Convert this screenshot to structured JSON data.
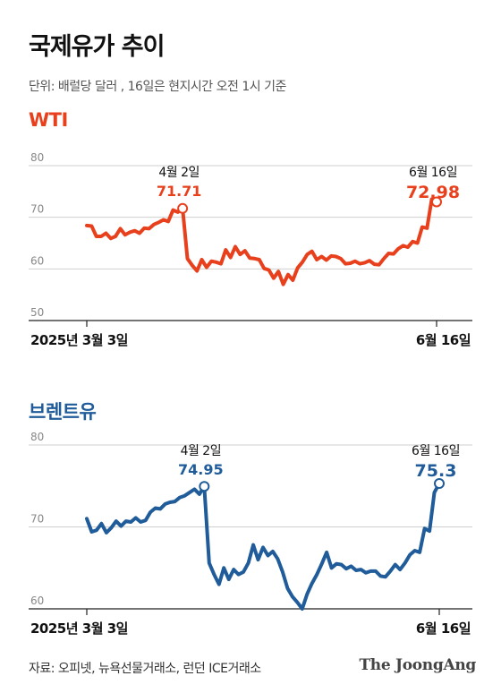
{
  "title": "국제유가 추이",
  "subtitle": "단위: 배럴당 달러 , 16일은 현지시간 오전 1시 기준",
  "source": "자료: 오피넷, 뉴욕선물거래소, 런던 ICE거래소",
  "logo": "The JoongAng",
  "chart_data": [
    {
      "type": "line",
      "title": "WTI",
      "color": "#e8401c",
      "ylim": [
        50,
        80
      ],
      "yticks": [
        "80",
        "70",
        "60",
        "50"
      ],
      "x_start_label": "2025년 3월 3일",
      "x_end_label": "6월 16일",
      "grid": true,
      "values": [
        68.4,
        68.3,
        66.3,
        66.3,
        66.9,
        65.9,
        66.3,
        67.8,
        66.6,
        67.1,
        67.4,
        66.9,
        67.9,
        67.8,
        68.6,
        69.0,
        69.5,
        69.2,
        71.4,
        71.0,
        71.71,
        62.0,
        60.7,
        59.6,
        61.8,
        60.3,
        61.5,
        61.3,
        61.0,
        63.7,
        62.2,
        64.3,
        62.8,
        63.5,
        62.1,
        62.0,
        61.8,
        60.1,
        59.8,
        58.2,
        59.5,
        57.0,
        58.9,
        57.8,
        60.2,
        61.3,
        62.8,
        63.4,
        61.8,
        62.4,
        61.7,
        62.5,
        62.4,
        62.0,
        61.0,
        61.1,
        61.5,
        61.0,
        61.2,
        61.6,
        60.9,
        60.8,
        62.0,
        63.0,
        62.9,
        63.9,
        64.5,
        64.2,
        65.3,
        65.0,
        68.1,
        67.9,
        73.5,
        72.98
      ],
      "annotations": [
        {
          "index": 20,
          "date": "4월 2일",
          "value": "71.71"
        },
        {
          "index": 73,
          "date": "6월 16일",
          "value": "72.98"
        }
      ]
    },
    {
      "type": "line",
      "title": "브렌트유",
      "color": "#1f5c99",
      "ylim": [
        60,
        80
      ],
      "yticks": [
        "80",
        "70",
        "60"
      ],
      "x_start_label": "2025년 3월 3일",
      "x_end_label": "6월 16일",
      "grid": true,
      "values": [
        71.0,
        69.4,
        69.6,
        70.4,
        69.3,
        69.9,
        70.7,
        70.1,
        70.7,
        70.6,
        71.1,
        70.6,
        70.8,
        71.8,
        72.3,
        72.2,
        72.8,
        73.0,
        73.1,
        73.6,
        73.8,
        74.2,
        74.6,
        74.0,
        74.95,
        65.6,
        64.2,
        63.0,
        65.0,
        63.6,
        64.8,
        64.2,
        64.5,
        65.6,
        67.8,
        66.0,
        67.5,
        66.5,
        67.0,
        66.1,
        64.5,
        62.5,
        61.5,
        60.8,
        60.0,
        61.8,
        63.1,
        64.2,
        65.5,
        66.9,
        65.0,
        65.5,
        65.4,
        64.9,
        65.2,
        64.7,
        64.8,
        64.4,
        64.6,
        64.6,
        64.0,
        63.9,
        64.6,
        65.4,
        64.8,
        65.6,
        66.6,
        67.1,
        66.9,
        69.8,
        69.5,
        74.2,
        75.3
      ],
      "annotations": [
        {
          "index": 24,
          "date": "4월 2일",
          "value": "74.95"
        },
        {
          "index": 72,
          "date": "6월 16일",
          "value": "75.3"
        }
      ]
    }
  ]
}
